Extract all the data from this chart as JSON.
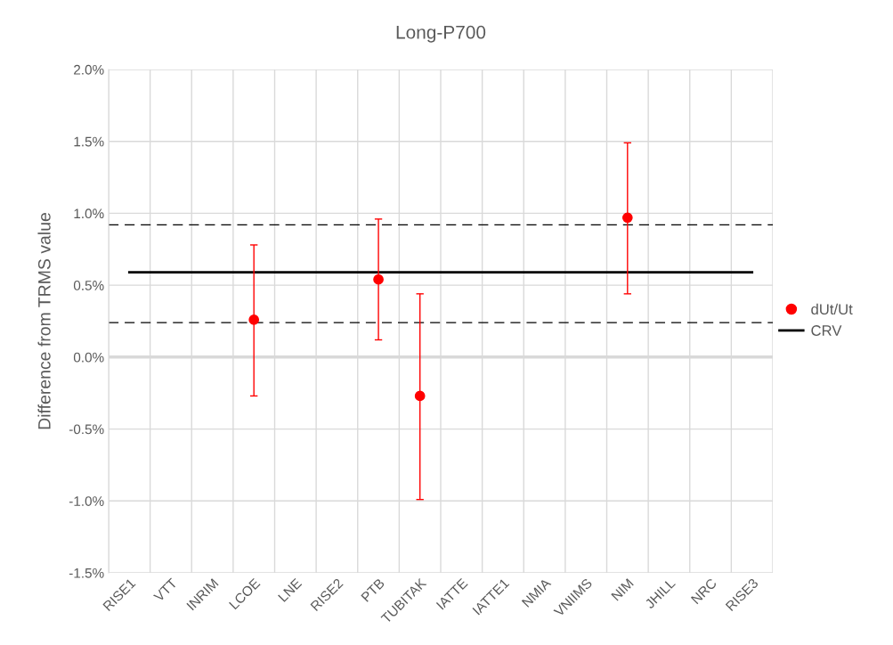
{
  "chart_data": {
    "type": "scatter",
    "title": "Long-P700",
    "ylabel": "Difference from TRMS value",
    "categories": [
      "RISE1",
      "VTT",
      "INRIM",
      "LCOE",
      "LNE",
      "RISE2",
      "PTB",
      "TUBITAK",
      "IATTE",
      "IATTE1",
      "NMIA",
      "VNIIMS",
      "NIM",
      "JHILL",
      "NRC",
      "RISE3"
    ],
    "series": [
      {
        "name": "dUt/Ut",
        "color": "#ff0000",
        "marker": "circle",
        "values": [
          null,
          null,
          null,
          0.26,
          null,
          null,
          0.54,
          -0.27,
          null,
          null,
          null,
          null,
          0.97,
          null,
          null,
          null
        ],
        "errors": [
          null,
          null,
          null,
          [
            -0.27,
            0.78
          ],
          null,
          null,
          [
            0.12,
            0.96
          ],
          [
            -0.99,
            0.44
          ],
          null,
          null,
          null,
          null,
          [
            0.44,
            1.49
          ],
          null,
          null,
          null
        ]
      },
      {
        "name": "CRV",
        "type": "line",
        "color": "#000000",
        "marker": "none",
        "line_style": "solid",
        "values": [
          0.59,
          0.59,
          0.59,
          0.59,
          0.59,
          0.59,
          0.59,
          0.59,
          0.59,
          0.59,
          0.59,
          0.59,
          0.59,
          0.59,
          0.59,
          0.59
        ]
      }
    ],
    "ref_lines": [
      {
        "axis": "y",
        "value": 0.92,
        "color": "#000000",
        "line_style": "dashed"
      },
      {
        "axis": "y",
        "value": 0.24,
        "color": "#000000",
        "line_style": "dashed"
      }
    ],
    "ylim": [
      -1.5,
      2.0
    ],
    "yticks": [
      {
        "value": -1.5,
        "label": "-1.5%"
      },
      {
        "value": -1.0,
        "label": "-1.0%"
      },
      {
        "value": -0.5,
        "label": "-0.5%"
      },
      {
        "value": 0.0,
        "label": "0.0%"
      },
      {
        "value": 0.5,
        "label": "0.5%"
      },
      {
        "value": 1.0,
        "label": "1.0%"
      },
      {
        "value": 1.5,
        "label": "1.5%"
      },
      {
        "value": 2.0,
        "label": "2.0%"
      }
    ],
    "grid": true,
    "legend": "right"
  }
}
